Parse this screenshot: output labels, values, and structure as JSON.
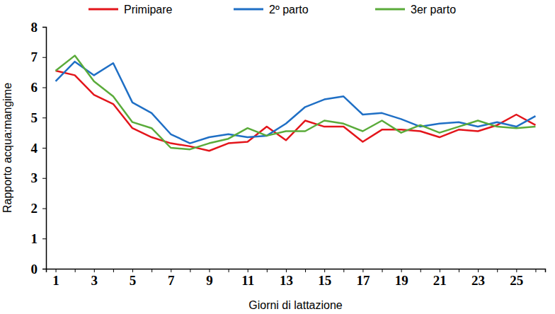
{
  "chart_data": {
    "type": "line",
    "y_label": "Rapporto acqua:mangime",
    "x_label": "Giorni di lattazione",
    "categories": [
      "1",
      null,
      "3",
      null,
      "5",
      null,
      "7",
      null,
      "9",
      null,
      "11",
      null,
      "13",
      null,
      "15",
      null,
      "17",
      null,
      "19",
      null,
      "21",
      null,
      "23",
      null,
      "25",
      null
    ],
    "ylim": [
      0,
      8
    ],
    "yticks": [
      0,
      1,
      2,
      3,
      4,
      5,
      6,
      7,
      8
    ],
    "grid": false,
    "legend": "top",
    "series": [
      {
        "name": "Primipare",
        "color": "#e3151b",
        "values": [
          6.55,
          6.4,
          5.75,
          5.45,
          4.65,
          4.35,
          4.15,
          4.05,
          3.9,
          4.15,
          4.2,
          4.7,
          4.25,
          4.9,
          4.7,
          4.7,
          4.2,
          4.6,
          4.6,
          4.55,
          4.35,
          4.6,
          4.55,
          4.75,
          5.1,
          4.75
        ]
      },
      {
        "name": "2º parto",
        "color": "#1f6fc5",
        "values": [
          6.2,
          6.85,
          6.4,
          6.8,
          5.5,
          5.15,
          4.45,
          4.15,
          4.35,
          4.45,
          4.35,
          4.4,
          4.8,
          5.35,
          5.6,
          5.7,
          5.1,
          5.15,
          4.95,
          4.7,
          4.8,
          4.85,
          4.7,
          4.85,
          4.7,
          5.05
        ]
      },
      {
        "name": "3er parto",
        "color": "#5aab3a",
        "values": [
          6.55,
          7.05,
          6.2,
          5.7,
          4.85,
          4.65,
          4.0,
          3.95,
          4.15,
          4.3,
          4.65,
          4.4,
          4.55,
          4.55,
          4.9,
          4.8,
          4.55,
          4.9,
          4.5,
          4.75,
          4.5,
          4.7,
          4.9,
          4.7,
          4.65,
          4.7
        ]
      }
    ]
  }
}
